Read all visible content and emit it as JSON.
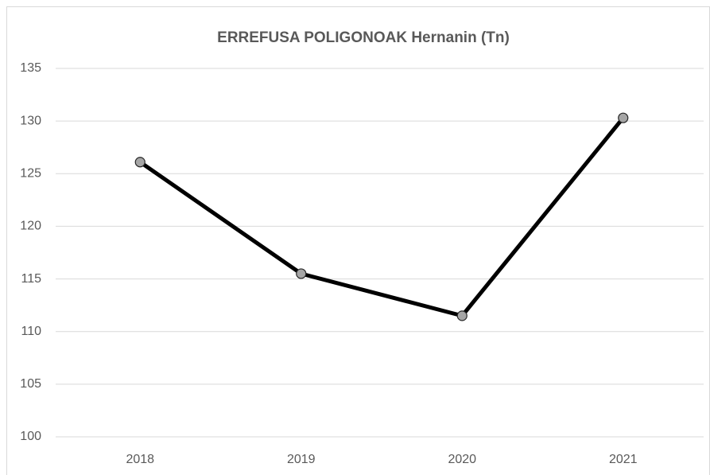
{
  "chart_data": {
    "type": "line",
    "title": "ERREFUSA POLIGONOAK Hernanin (Tn)",
    "categories": [
      "2018",
      "2019",
      "2020",
      "2021"
    ],
    "values": [
      126.1,
      115.5,
      111.5,
      130.3
    ],
    "color": "#000000",
    "marker_color": "#a6a6a6",
    "ylim": [
      100,
      135
    ],
    "yticks": [
      100,
      105,
      110,
      115,
      120,
      125,
      130,
      135
    ],
    "grid": true
  }
}
